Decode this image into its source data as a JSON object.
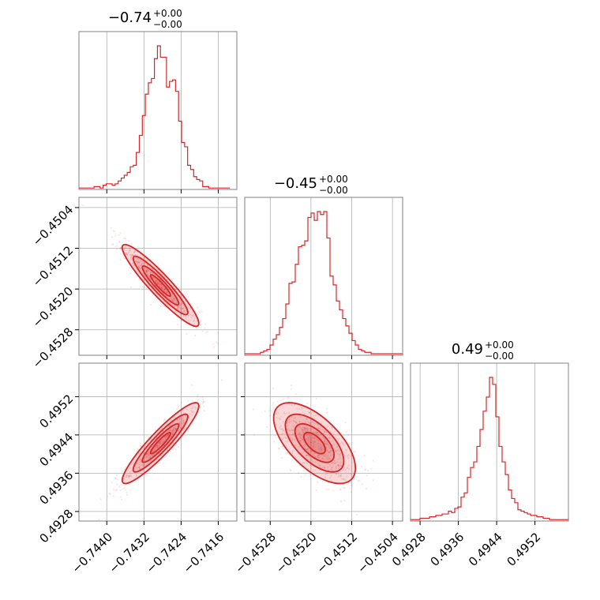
{
  "chart_data": {
    "type": "corner",
    "colors": {
      "line": "#d62728",
      "fill": "#d62728",
      "grid": "#b0b0b0",
      "frame": "#808080"
    },
    "parameters": [
      {
        "title_value": "−0.74",
        "title_plus": "+0.00",
        "title_minus": "−0.00",
        "range": [
          -0.7446,
          -0.7412
        ],
        "ticks": [
          -0.744,
          -0.7432,
          -0.7424,
          -0.7416
        ],
        "tick_labels": [
          "−0.7440",
          "−0.7432",
          "−0.7424",
          "−0.7416"
        ],
        "hist_bin_edges_start": -0.7446,
        "hist_bin_width": 6.5e-05,
        "hist_counts": [
          1,
          1,
          1,
          1,
          1,
          2,
          2,
          1,
          3,
          4,
          4,
          3,
          4,
          6,
          8,
          10,
          12,
          16,
          17,
          26,
          38,
          52,
          67,
          75,
          78,
          92,
          101,
          93,
          93,
          72,
          76,
          77,
          69,
          48,
          33,
          30,
          17,
          14,
          9,
          7,
          6,
          2,
          2,
          1,
          1,
          1,
          1,
          1,
          1,
          1
        ]
      },
      {
        "title_value": "−0.45",
        "title_plus": "+0.00",
        "title_minus": "−0.00",
        "range": [
          -0.4533,
          -0.4502
        ],
        "ticks": [
          -0.4528,
          -0.452,
          -0.4512,
          -0.4504
        ],
        "tick_labels": [
          "−0.4528",
          "−0.4520",
          "−0.4512",
          "−0.4504"
        ],
        "hist_bin_edges_start": -0.4533,
        "hist_bin_width": 6.2e-05,
        "hist_counts": [
          1,
          1,
          1,
          1,
          1,
          2,
          3,
          4,
          7,
          11,
          14,
          19,
          25,
          35,
          49,
          50,
          62,
          74,
          75,
          78,
          94,
          97,
          92,
          98,
          96,
          98,
          80,
          54,
          48,
          37,
          31,
          25,
          20,
          15,
          10,
          7,
          4,
          3,
          2,
          2,
          1,
          1,
          1,
          1,
          1,
          1,
          1,
          1,
          1,
          1
        ]
      },
      {
        "title_value": "0.49",
        "title_plus": "+0.00",
        "title_minus": "−0.00",
        "range": [
          0.4926,
          0.4959
        ],
        "ticks": [
          0.4928,
          0.4936,
          0.4944,
          0.4952
        ],
        "tick_labels": [
          "0.4928",
          "0.4936",
          "0.4944",
          "0.4952"
        ],
        "hist_bin_edges_start": 0.4926,
        "hist_bin_width": 6.6e-05,
        "hist_counts": [
          1,
          1,
          1,
          2,
          2,
          2,
          3,
          3,
          4,
          4,
          5,
          5,
          7,
          6,
          9,
          10,
          17,
          20,
          31,
          38,
          42,
          53,
          65,
          78,
          88,
          102,
          97,
          74,
          53,
          42,
          33,
          22,
          16,
          13,
          8,
          7,
          6,
          5,
          4,
          4,
          3,
          3,
          2,
          2,
          1,
          1,
          1,
          1,
          1,
          1
        ]
      }
    ],
    "pairs": [
      {
        "x_param": 0,
        "y_param": 1,
        "correlation": -0.93
      },
      {
        "x_param": 0,
        "y_param": 2,
        "correlation": 0.92
      },
      {
        "x_param": 1,
        "y_param": 2,
        "correlation": -0.62
      }
    ]
  }
}
